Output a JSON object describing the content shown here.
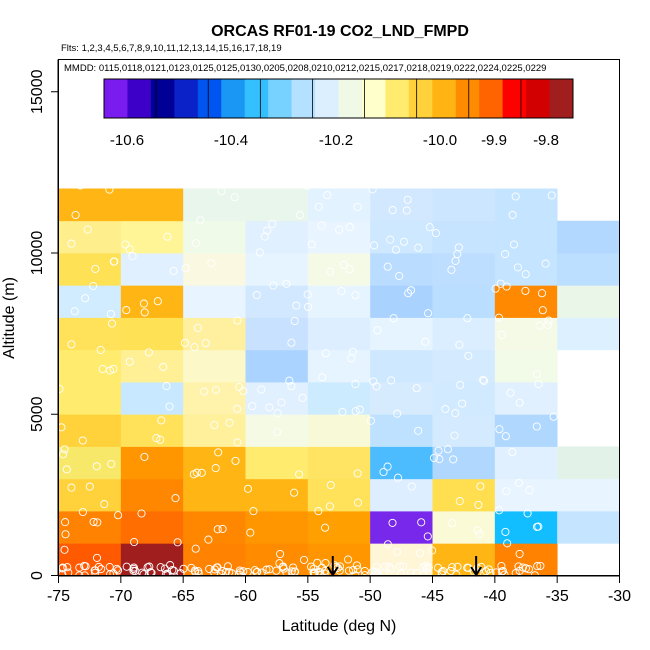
{
  "chart_data": {
    "type": "heatmap",
    "title": "ORCAS RF01-19 CO2_LND_FMPD",
    "flights_label": "Flts: 1,2,3,4,5,6,7,8,9,10,11,12,13,14,15,16,17,18,19",
    "dates_label": "MMDD: 0115,0118,0121,0123,0125,0125,0130,0205,0208,0210,0212,0215,0217,0218,0219,0222,0224,0225,0229",
    "xlabel": "Latitude (deg N)",
    "ylabel": "Altitude (m)",
    "xlim": [
      -75,
      -30
    ],
    "ylim": [
      0,
      16000
    ],
    "x_ticks": [
      -75,
      -70,
      -65,
      -60,
      -55,
      -50,
      -45,
      -40,
      -35,
      -30
    ],
    "y_ticks": [
      0,
      5000,
      10000,
      15000
    ],
    "colorbar": {
      "ticks": [
        -10.6,
        -10.4,
        -10.2,
        -10.0,
        -9.9,
        -9.8
      ],
      "tick_labels": [
        "-10.6",
        "-10.4",
        "-10.2",
        "-10.0",
        "-9.9",
        "-9.8"
      ],
      "colors": [
        "#7a1cf0",
        "#3d00c8",
        "#000096",
        "#0a22c8",
        "#0055f0",
        "#1a96f5",
        "#34c0ff",
        "#78d2ff",
        "#b4e1ff",
        "#dcefff",
        "#f0f8e6",
        "#ffffcc",
        "#ffeb6e",
        "#ffd23c",
        "#ffb414",
        "#ff8c00",
        "#ff6400",
        "#ff0000",
        "#d20000",
        "#a01e1e"
      ]
    },
    "cell_x_edges": [
      -75,
      -70,
      -65,
      -60,
      -55,
      -50,
      -45,
      -40,
      -35,
      -30
    ],
    "alt_bin_size_m": 1000,
    "cells": [
      [
        0,
        1,
        [
          255,
          90,
          0
        ]
      ],
      [
        1,
        2,
        [
          255,
          130,
          0
        ]
      ],
      [
        2,
        3,
        [
          255,
          210,
          60
        ]
      ],
      [
        3,
        4,
        [
          248,
          232,
          105
        ]
      ],
      [
        4,
        5,
        [
          255,
          210,
          60
        ]
      ],
      [
        5,
        6,
        [
          255,
          235,
          110
        ]
      ],
      [
        6,
        7,
        [
          255,
          235,
          110
        ]
      ],
      [
        7,
        8,
        [
          255,
          225,
          90
        ]
      ],
      [
        8,
        9,
        [
          210,
          236,
          255
        ]
      ],
      [
        9,
        10,
        [
          255,
          225,
          85
        ]
      ],
      [
        10,
        11,
        [
          255,
          238,
          140
        ]
      ],
      [
        11,
        12,
        [
          255,
          182,
          20
        ]
      ],
      [
        0,
        1,
        [
          160,
          30,
          30
        ]
      ],
      [
        1,
        2,
        [
          255,
          110,
          0
        ]
      ],
      [
        2,
        3,
        [
          255,
          135,
          0
        ]
      ],
      [
        3,
        4,
        [
          255,
          150,
          0
        ]
      ],
      [
        4,
        5,
        [
          255,
          225,
          90
        ]
      ],
      [
        5,
        6,
        [
          200,
          232,
          255
        ]
      ],
      [
        6,
        7,
        [
          255,
          240,
          150
        ]
      ],
      [
        7,
        8,
        [
          255,
          225,
          85
        ]
      ],
      [
        8,
        9,
        [
          255,
          182,
          20
        ]
      ],
      [
        9,
        10,
        [
          225,
          240,
          255
        ]
      ],
      [
        10,
        11,
        [
          255,
          245,
          150
        ]
      ],
      [
        11,
        12,
        [
          255,
          182,
          20
        ]
      ],
      [
        0,
        1,
        [
          255,
          130,
          0
        ]
      ],
      [
        1,
        2,
        [
          255,
          135,
          0
        ]
      ],
      [
        2,
        3,
        [
          255,
          182,
          20
        ]
      ],
      [
        3,
        4,
        [
          255,
          182,
          20
        ]
      ],
      [
        4,
        5,
        [
          255,
          240,
          155
        ]
      ],
      [
        5,
        6,
        [
          255,
          242,
          170
        ]
      ],
      [
        6,
        7,
        [
          252,
          248,
          200
        ]
      ],
      [
        7,
        8,
        [
          255,
          240,
          160
        ]
      ],
      [
        8,
        9,
        [
          232,
          244,
          255
        ]
      ],
      [
        9,
        10,
        [
          250,
          248,
          225
        ]
      ],
      [
        10,
        11,
        [
          240,
          250,
          232
        ]
      ],
      [
        11,
        12,
        [
          232,
          246,
          235
        ]
      ],
      [
        0,
        1,
        [
          255,
          140,
          0
        ]
      ],
      [
        1,
        2,
        [
          255,
          150,
          0
        ]
      ],
      [
        2,
        3,
        [
          255,
          182,
          20
        ]
      ],
      [
        3,
        4,
        [
          255,
          235,
          110
        ]
      ],
      [
        4,
        5,
        [
          244,
          250,
          228
        ]
      ],
      [
        5,
        6,
        [
          225,
          240,
          255
        ]
      ],
      [
        6,
        7,
        [
          170,
          212,
          255
        ]
      ],
      [
        7,
        8,
        [
          200,
          225,
          255
        ]
      ],
      [
        8,
        9,
        [
          210,
          232,
          255
        ]
      ],
      [
        9,
        10,
        [
          230,
          244,
          255
        ]
      ],
      [
        10,
        11,
        [
          225,
          240,
          255
        ]
      ],
      [
        11,
        12,
        [
          232,
          246,
          235
        ]
      ],
      [
        0,
        1,
        [
          255,
          150,
          0
        ]
      ],
      [
        1,
        2,
        [
          255,
          160,
          0
        ]
      ],
      [
        2,
        3,
        [
          255,
          225,
          90
        ]
      ],
      [
        3,
        4,
        [
          255,
          228,
          100
        ]
      ],
      [
        4,
        5,
        [
          248,
          250,
          215
        ]
      ],
      [
        5,
        6,
        [
          205,
          235,
          255
        ]
      ],
      [
        6,
        7,
        [
          230,
          244,
          255
        ]
      ],
      [
        7,
        8,
        [
          220,
          238,
          255
        ]
      ],
      [
        8,
        9,
        [
          230,
          244,
          255
        ]
      ],
      [
        9,
        10,
        [
          245,
          250,
          230
        ]
      ],
      [
        10,
        11,
        [
          232,
          244,
          255
        ]
      ],
      [
        11,
        12,
        [
          226,
          242,
          255
        ]
      ],
      [
        0,
        1,
        [
          255,
          245,
          215
        ]
      ],
      [
        1,
        2,
        [
          120,
          40,
          235
        ]
      ],
      [
        2,
        3,
        [
          220,
          238,
          255
        ]
      ],
      [
        3,
        4,
        [
          76,
          188,
          255
        ]
      ],
      [
        4,
        5,
        [
          190,
          225,
          255
        ]
      ],
      [
        5,
        6,
        [
          215,
          235,
          255
        ]
      ],
      [
        6,
        7,
        [
          205,
          232,
          255
        ]
      ],
      [
        7,
        8,
        [
          230,
          244,
          255
        ]
      ],
      [
        8,
        9,
        [
          170,
          210,
          255
        ]
      ],
      [
        9,
        10,
        [
          185,
          220,
          255
        ]
      ],
      [
        10,
        11,
        [
          205,
          232,
          255
        ]
      ],
      [
        11,
        12,
        [
          210,
          232,
          255
        ]
      ],
      [
        0,
        1,
        [
          255,
          182,
          20
        ]
      ],
      [
        1,
        2,
        [
          250,
          250,
          215
        ]
      ],
      [
        2,
        3,
        [
          255,
          222,
          80
        ]
      ],
      [
        3,
        4,
        [
          176,
          216,
          255
        ]
      ],
      [
        4,
        5,
        [
          212,
          234,
          255
        ]
      ],
      [
        5,
        6,
        [
          210,
          234,
          255
        ]
      ],
      [
        6,
        7,
        [
          212,
          234,
          255
        ]
      ],
      [
        7,
        8,
        [
          218,
          238,
          255
        ]
      ],
      [
        8,
        9,
        [
          186,
          222,
          255
        ]
      ],
      [
        9,
        10,
        [
          190,
          222,
          255
        ]
      ],
      [
        10,
        11,
        [
          198,
          228,
          255
        ]
      ],
      [
        11,
        12,
        [
          205,
          230,
          255
        ]
      ],
      [
        0,
        1,
        [
          255,
          130,
          0
        ]
      ],
      [
        1,
        2,
        [
          18,
          190,
          255
        ]
      ],
      [
        2,
        3,
        [
          232,
          244,
          255
        ]
      ],
      [
        3,
        4,
        [
          225,
          240,
          255
        ]
      ],
      [
        4,
        5,
        [
          176,
          216,
          255
        ]
      ],
      [
        5,
        6,
        [
          225,
          240,
          255
        ]
      ],
      [
        6,
        7,
        [
          242,
          250,
          232
        ]
      ],
      [
        7,
        8,
        [
          245,
          250,
          230
        ]
      ],
      [
        8,
        9,
        [
          255,
          137,
          0
        ]
      ],
      [
        9,
        10,
        [
          196,
          228,
          255
        ]
      ],
      [
        10,
        11,
        [
          196,
          228,
          255
        ]
      ],
      [
        11,
        12,
        [
          196,
          228,
          255
        ]
      ],
      [
        1,
        2,
        [
          196,
          228,
          255
        ]
      ],
      [
        2,
        3,
        [
          232,
          244,
          255
        ]
      ],
      [
        3,
        4,
        [
          226,
          242,
          232
        ]
      ],
      [
        7,
        8,
        [
          220,
          240,
          255
        ]
      ],
      [
        8,
        9,
        [
          234,
          246,
          232
        ]
      ],
      [
        9,
        10,
        [
          188,
          222,
          255
        ]
      ],
      [
        10,
        11,
        [
          178,
          216,
          255
        ]
      ]
    ],
    "arrows_latitude": [
      -53,
      -41.5
    ],
    "sample_points_note": "white open circles mark sampled observations"
  }
}
